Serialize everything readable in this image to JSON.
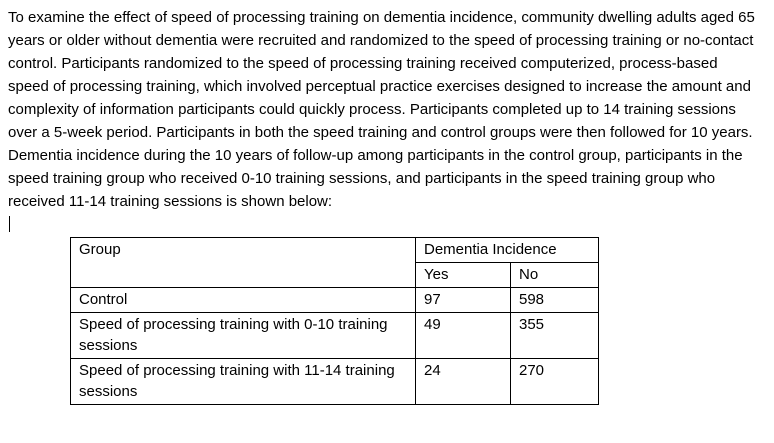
{
  "document": {
    "paragraph": "To examine the effect of speed of processing training on dementia incidence, community dwelling adults aged 65 years or older without dementia were recruited and randomized to the speed of processing training or no-contact control. Participants randomized to the speed of processing training received computerized, process-based speed of processing training, which involved perceptual practice exercises designed to increase the amount and complexity of information participants could quickly process. Participants completed up to 14 training sessions over a 5-week period. Participants in both the speed training and control groups were then followed for 10 years. Dementia incidence during the 10 years of follow-up among participants in the control group, participants in the speed training group who received 0-10 training sessions, and participants in the speed training group who received 11-14 training sessions is shown below:"
  },
  "table": {
    "headers": {
      "group": "Group",
      "dementia_incidence": "Dementia Incidence",
      "yes": "Yes",
      "no": "No"
    },
    "rows": [
      {
        "group": "Control",
        "yes": "97",
        "no": "598"
      },
      {
        "group": "Speed of processing training with 0-10 training sessions",
        "yes": "49",
        "no": "355"
      },
      {
        "group": "Speed of processing training with 11-14 training sessions",
        "yes": "24",
        "no": "270"
      }
    ]
  }
}
